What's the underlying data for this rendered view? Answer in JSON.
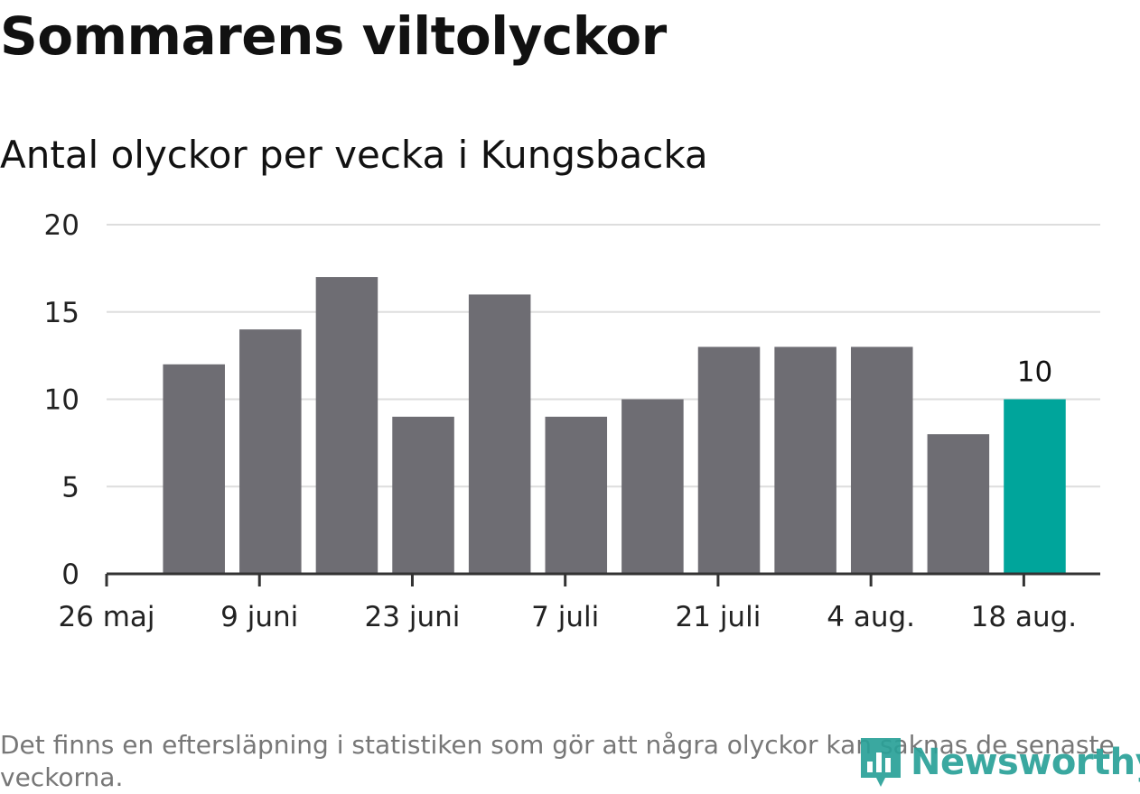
{
  "title": "Sommarens viltolyckor",
  "subtitle": "Antal olyckor per vecka i Kungsbacka",
  "footnote": "Det finns en eftersläpning i statistiken som gör att några olyckor kan saknas de senaste veckorna.",
  "logo": {
    "text": "Newsworthy",
    "icon": "bar-chart-badge-icon",
    "color": "#2aa198"
  },
  "colors": {
    "bar": "#6e6d73",
    "highlight": "#00a59b",
    "grid": "#dddddd",
    "axis": "#333333"
  },
  "chart_data": {
    "type": "bar",
    "title": "Sommarens viltolyckor",
    "subtitle": "Antal olyckor per vecka i Kungsbacka",
    "xlabel": "",
    "ylabel": "",
    "ylim": [
      0,
      20
    ],
    "yticks": [
      0,
      5,
      10,
      15,
      20
    ],
    "grid": true,
    "x_axis": {
      "start": "2019-05-26",
      "end": "2019-08-25",
      "ticks": [
        {
          "date": "2019-05-26",
          "label": "26 maj"
        },
        {
          "date": "2019-06-09",
          "label": "9 juni"
        },
        {
          "date": "2019-06-23",
          "label": "23 juni"
        },
        {
          "date": "2019-07-07",
          "label": "7 juli"
        },
        {
          "date": "2019-07-21",
          "label": "21 juli"
        },
        {
          "date": "2019-08-04",
          "label": "4 aug."
        },
        {
          "date": "2019-08-18",
          "label": "18 aug."
        }
      ]
    },
    "weeks": [
      "2019-06-03",
      "2019-06-10",
      "2019-06-17",
      "2019-06-24",
      "2019-07-01",
      "2019-07-08",
      "2019-07-15",
      "2019-07-22",
      "2019-07-29",
      "2019-08-05",
      "2019-08-12",
      "2019-08-19"
    ],
    "values": [
      12,
      14,
      17,
      9,
      16,
      9,
      10,
      13,
      13,
      13,
      8,
      10
    ],
    "highlight_index": 11,
    "data_labels": [
      {
        "index": 11,
        "text": "10"
      }
    ]
  }
}
